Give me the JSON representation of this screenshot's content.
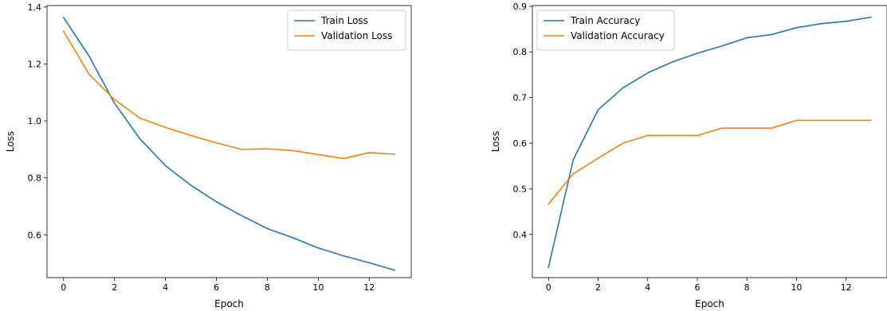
{
  "chart_data": [
    {
      "type": "line",
      "title": "",
      "xlabel": "Epoch",
      "ylabel": "Loss",
      "x": [
        0,
        1,
        2,
        3,
        4,
        5,
        6,
        7,
        8,
        9,
        10,
        11,
        12,
        13
      ],
      "xlim": [
        -0.65,
        13.65
      ],
      "ylim": [
        0.45,
        1.405
      ],
      "xticks": [
        0,
        2,
        4,
        6,
        8,
        10,
        12
      ],
      "yticks": [
        0.6,
        0.8,
        1.0,
        1.2,
        1.4
      ],
      "ytick_labels": [
        "0.6",
        "0.8",
        "1.0",
        "1.2",
        "1.4"
      ],
      "grid": false,
      "legend": "upper-right",
      "series": [
        {
          "name": "Train Loss",
          "color": "#1f77b4",
          "values": [
            1.363,
            1.228,
            1.062,
            0.937,
            0.843,
            0.774,
            0.716,
            0.667,
            0.622,
            0.59,
            0.554,
            0.526,
            0.502,
            0.476
          ]
        },
        {
          "name": "Validation Loss",
          "color": "#ff7f0e",
          "values": [
            1.315,
            1.164,
            1.075,
            1.01,
            0.977,
            0.949,
            0.923,
            0.9,
            0.902,
            0.896,
            0.882,
            0.868,
            0.889,
            0.883
          ]
        }
      ]
    },
    {
      "type": "line",
      "title": "",
      "xlabel": "Epoch",
      "ylabel": "Loss",
      "x": [
        0,
        1,
        2,
        3,
        4,
        5,
        6,
        7,
        8,
        9,
        10,
        11,
        12,
        13
      ],
      "xlim": [
        -0.65,
        13.65
      ],
      "ylim": [
        0.3055,
        0.9015
      ],
      "xticks": [
        0,
        2,
        4,
        6,
        8,
        10,
        12
      ],
      "yticks": [
        0.4,
        0.5,
        0.6,
        0.7,
        0.8,
        0.9
      ],
      "ytick_labels": [
        "0.4",
        "0.5",
        "0.6",
        "0.7",
        "0.8",
        "0.9"
      ],
      "grid": false,
      "legend": "upper-left",
      "series": [
        {
          "name": "Train Accuracy",
          "color": "#1f77b4",
          "values": [
            0.328,
            0.564,
            0.673,
            0.721,
            0.754,
            0.778,
            0.797,
            0.813,
            0.831,
            0.838,
            0.853,
            0.862,
            0.867,
            0.876
          ]
        },
        {
          "name": "Validation Accuracy",
          "color": "#ff7f0e",
          "values": [
            0.467,
            0.533,
            0.567,
            0.6,
            0.617,
            0.617,
            0.617,
            0.633,
            0.633,
            0.633,
            0.65,
            0.65,
            0.65,
            0.65
          ]
        }
      ]
    }
  ]
}
